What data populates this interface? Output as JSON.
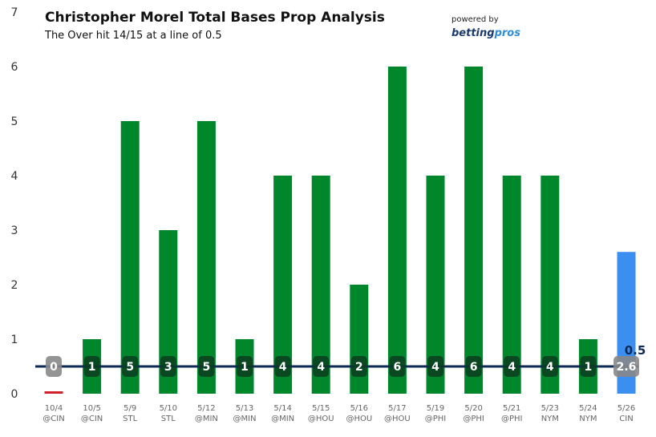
{
  "title": "Christopher Morel Total Bases Prop Analysis",
  "subtitle": "The Over hit 14/15 at a line of 0.5",
  "branding": {
    "powered_by": "powered by",
    "brand_a": "betting",
    "brand_b": "pros",
    "brand_color_a": "#1b3a6b",
    "brand_color_b": "#2e8fd8"
  },
  "colors": {
    "over": "#00862b",
    "under": "#d0202a",
    "projection": "#3b8ff0",
    "line": "#0d2a57",
    "label_bg": "#0a3d1f",
    "label_bg_neutral": "#888888"
  },
  "chart_data": {
    "type": "bar",
    "title": "Christopher Morel Total Bases Prop Analysis",
    "subtitle": "The Over hit 14/15 at a line of 0.5",
    "xlabel": "",
    "ylabel": "",
    "ylim": [
      0,
      7
    ],
    "yticks": [
      0,
      1,
      2,
      3,
      4,
      5,
      6,
      7
    ],
    "grid": false,
    "line_value": 0.5,
    "line_label": "0.5",
    "categories": [
      [
        "10/4",
        "@CIN"
      ],
      [
        "10/5",
        "@CIN"
      ],
      [
        "5/9",
        "STL"
      ],
      [
        "5/10",
        "STL"
      ],
      [
        "5/12",
        "@MIN"
      ],
      [
        "5/13",
        "@MIN"
      ],
      [
        "5/14",
        "@MIN"
      ],
      [
        "5/15",
        "@HOU"
      ],
      [
        "5/16",
        "@HOU"
      ],
      [
        "5/17",
        "@HOU"
      ],
      [
        "5/19",
        "@PHI"
      ],
      [
        "5/20",
        "@PHI"
      ],
      [
        "5/21",
        "@PHI"
      ],
      [
        "5/23",
        "NYM"
      ],
      [
        "5/24",
        "NYM"
      ],
      [
        "5/26",
        "CIN"
      ]
    ],
    "values": [
      0,
      1,
      5,
      3,
      5,
      1,
      4,
      4,
      2,
      6,
      4,
      6,
      4,
      4,
      1,
      2.6
    ],
    "labels": [
      "0",
      "1",
      "5",
      "3",
      "5",
      "1",
      "4",
      "4",
      "2",
      "6",
      "4",
      "6",
      "4",
      "4",
      "1",
      "2.6"
    ],
    "kinds": [
      "under",
      "over",
      "over",
      "over",
      "over",
      "over",
      "over",
      "over",
      "over",
      "over",
      "over",
      "over",
      "over",
      "over",
      "over",
      "projection"
    ]
  }
}
